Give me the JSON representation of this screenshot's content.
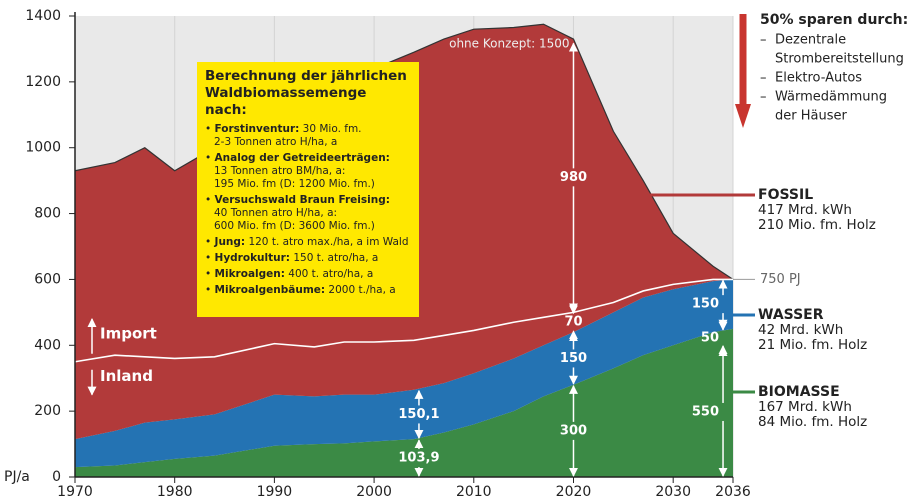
{
  "chart_data": {
    "type": "stacked-area",
    "x": [
      1970,
      1974,
      1977,
      1980,
      1984,
      1990,
      1994,
      1997,
      2000,
      2004,
      2007,
      2010,
      2014,
      2017,
      2020,
      2024,
      2027,
      2030,
      2034,
      2036
    ],
    "series": [
      {
        "name": "BIOMASSE",
        "color": "#3b8a45",
        "details": [
          "167 Mrd. kWh",
          "84 Mio. fm. Holz"
        ],
        "values": [
          30,
          35,
          45,
          55,
          65,
          95,
          100,
          102,
          108,
          115,
          135,
          160,
          200,
          245,
          280,
          330,
          370,
          400,
          440,
          450
        ]
      },
      {
        "name": "WASSER",
        "color": "#2473b3",
        "details": [
          "42 Mrd. kWh",
          "21 Mio. fm. Holz"
        ],
        "values": [
          85,
          105,
          120,
          120,
          125,
          155,
          145,
          148,
          142,
          150,
          150,
          155,
          160,
          155,
          160,
          170,
          175,
          170,
          155,
          150
        ]
      },
      {
        "name": "FOSSIL",
        "color": "#b23a3a",
        "details": [
          "417 Mrd. kWh",
          "210 Mio. fm. Holz"
        ],
        "values": [
          815,
          815,
          835,
          755,
          810,
          830,
          905,
          950,
          990,
          1025,
          1045,
          1045,
          1005,
          975,
          890,
          550,
          355,
          170,
          45,
          0
        ]
      }
    ],
    "import_boundary": [
      350,
      370,
      365,
      360,
      365,
      405,
      395,
      410,
      410,
      415,
      430,
      445,
      470,
      485,
      500,
      530,
      565,
      585,
      600,
      600
    ],
    "xlim": [
      1970,
      2036
    ],
    "xticks": [
      1970,
      1980,
      1990,
      2000,
      2010,
      2020,
      2030,
      2036
    ],
    "ylim": [
      0,
      1400
    ],
    "yticks": [
      0,
      200,
      400,
      600,
      800,
      1000,
      1200,
      1400
    ],
    "y_unit": "PJ/a",
    "arrows": [
      {
        "text": "103,9",
        "x": 2004.5,
        "from": 0,
        "to": 115
      },
      {
        "text": "150,1",
        "x": 2004.5,
        "from": 115,
        "to": 265
      },
      {
        "text": "300",
        "x": 2020,
        "from": 0,
        "to": 280
      },
      {
        "text": "150",
        "x": 2020,
        "from": 280,
        "to": 440
      },
      {
        "text": "70",
        "x": 2020,
        "from": 440,
        "to": 500
      },
      {
        "text": "980",
        "x": 2020,
        "from": 500,
        "to": 1320
      },
      {
        "text": "550",
        "x": 2035,
        "from": 0,
        "to": 395
      },
      {
        "text": "50",
        "x": 2035,
        "from": 395,
        "to": 450
      },
      {
        "text": "150",
        "x": 2035,
        "from": 450,
        "to": 600
      }
    ],
    "ohne_konzept": "ohne Konzept: 1500",
    "marker_750": "750 PJ",
    "import_label": "Import",
    "inland_label": "Inland",
    "infobox": {
      "title": [
        "Berechnung der jährlichen",
        "Waldbiomassemenge nach:"
      ],
      "items": [
        {
          "bold": "Forstinventur:",
          "text": " 30 Mio. fm.",
          "more": [
            "2-3 Tonnen atro H/ha, a"
          ]
        },
        {
          "bold": "Analog der Getreideerträgen:",
          "text": "",
          "more": [
            "13 Tonnen atro BM/ha, a:",
            "195 Mio. fm (D: 1200 Mio. fm.)"
          ]
        },
        {
          "bold": "Versuchswald Braun Freising:",
          "text": "",
          "more": [
            "40 Tonnen atro H/ha, a:",
            "600 Mio. fm (D: 3600 Mio. fm.)"
          ]
        },
        {
          "bold": "Jung:",
          "text": " 120 t. atro max./ha, a im Wald",
          "more": []
        },
        {
          "bold": "Hydrokultur:",
          "text": " 150 t. atro/ha, a",
          "more": []
        },
        {
          "bold": "Mikroalgen:",
          "text": " 400 t. atro/ha, a",
          "more": []
        },
        {
          "bold": "Mikroalgenbäume:",
          "text": " 2000 t./ha, a",
          "more": []
        }
      ]
    },
    "savings": {
      "title": "50% sparen durch:",
      "items": [
        [
          "Dezentrale",
          "Strombereitstellung"
        ],
        [
          "Elektro-Autos"
        ],
        [
          "Wärmedämmung",
          "der Häuser"
        ]
      ]
    }
  }
}
